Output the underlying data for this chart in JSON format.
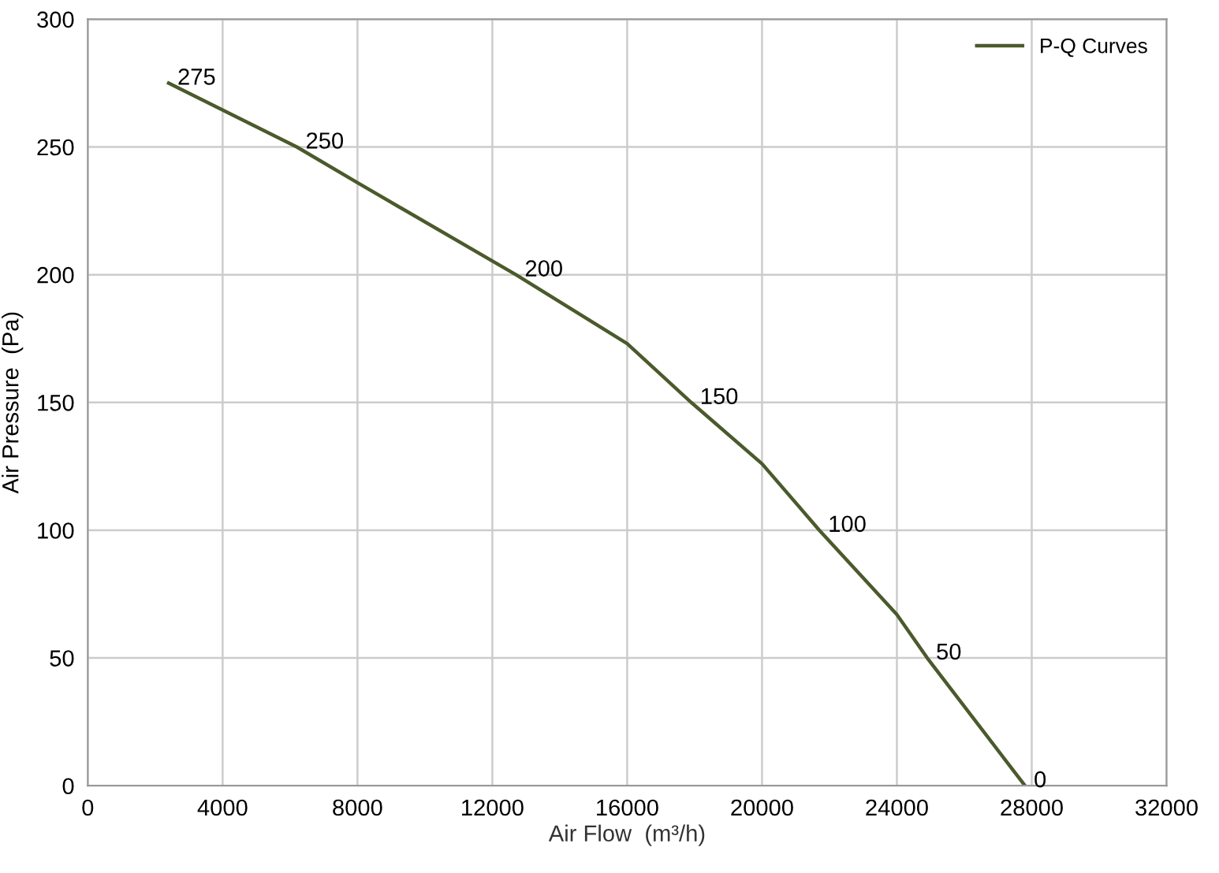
{
  "chart_data": {
    "type": "line",
    "xlabel": "Air Flow  (m³/h)",
    "ylabel": "Air Pressure  (Pa)",
    "xlim": [
      0,
      32000
    ],
    "xticks": [
      0,
      4000,
      8000,
      12000,
      16000,
      20000,
      24000,
      28000,
      32000
    ],
    "ylim": [
      0,
      300
    ],
    "yticks": [
      0,
      50,
      100,
      150,
      200,
      250,
      300
    ],
    "grid": true,
    "legend": "top right",
    "marker": "none",
    "line_style": "solid",
    "series": [
      {
        "name": "P-Q Curves",
        "color": "#4b5a2c",
        "x": [
          2400,
          6200,
          8000,
          12700,
          16000,
          17900,
          20000,
          21700,
          24000,
          24900,
          27800
        ],
        "values": [
          275,
          250,
          236,
          200,
          173,
          150,
          126,
          100,
          67,
          50,
          0
        ],
        "value_labels": [
          "275",
          "250",
          null,
          "200",
          null,
          "150",
          null,
          "100",
          null,
          "50",
          "0"
        ]
      }
    ]
  }
}
